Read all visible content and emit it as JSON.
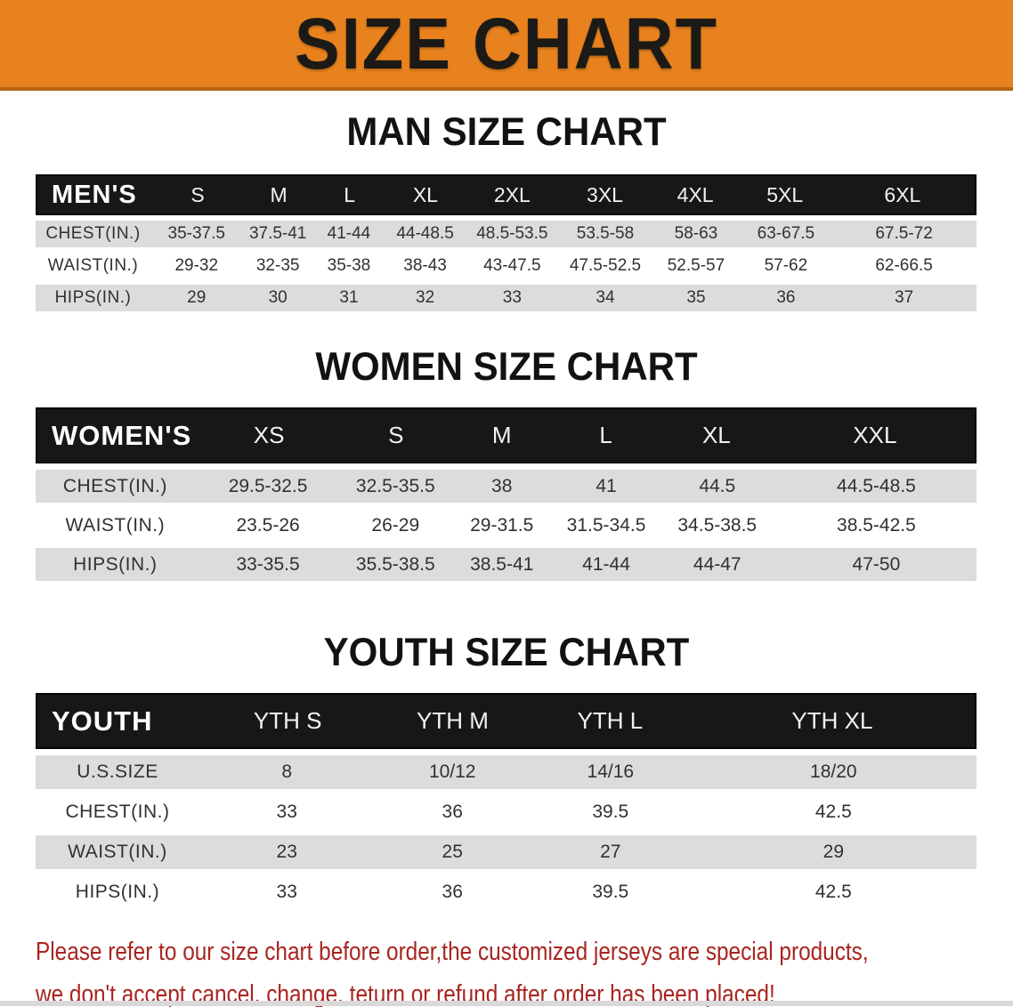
{
  "banner": {
    "title": "SIZE CHART",
    "bg_color": "#e8821e",
    "border_color": "#b76310",
    "text_color": "#1c1a16"
  },
  "colors": {
    "header_bar": "#171717",
    "row_gray": "#dcdcdc",
    "row_white": "#ffffff",
    "disclaimer_red": "#a82420"
  },
  "sections": [
    {
      "heading": "MAN SIZE CHART",
      "table": {
        "header": [
          "MEN'S",
          "S",
          "M",
          "L",
          "XL",
          "2XL",
          "3XL",
          "4XL",
          "5XL",
          "6XL"
        ],
        "rows": [
          {
            "label": "CHEST(IN.)",
            "values": [
              "35-37.5",
              "37.5-41",
              "41-44",
              "44-48.5",
              "48.5-53.5",
              "53.5-58",
              "58-63",
              "63-67.5",
              "67.5-72"
            ]
          },
          {
            "label": "WAIST(IN.)",
            "values": [
              "29-32",
              "32-35",
              "35-38",
              "38-43",
              "43-47.5",
              "47.5-52.5",
              "52.5-57",
              "57-62",
              "62-66.5"
            ]
          },
          {
            "label": "HIPS(IN.)",
            "values": [
              "29",
              "30",
              "31",
              "32",
              "33",
              "34",
              "35",
              "36",
              "37"
            ]
          }
        ]
      }
    },
    {
      "heading": "WOMEN SIZE CHART",
      "table": {
        "header": [
          "WOMEN'S",
          "XS",
          "S",
          "M",
          "L",
          "XL",
          "XXL"
        ],
        "rows": [
          {
            "label": "CHEST(IN.)",
            "values": [
              "29.5-32.5",
              "32.5-35.5",
              "38",
              "41",
              "44.5",
              "44.5-48.5"
            ]
          },
          {
            "label": "WAIST(IN.)",
            "values": [
              "23.5-26",
              "26-29",
              "29-31.5",
              "31.5-34.5",
              "34.5-38.5",
              "38.5-42.5"
            ]
          },
          {
            "label": "HIPS(IN.)",
            "values": [
              "33-35.5",
              "35.5-38.5",
              "38.5-41",
              "41-44",
              "44-47",
              "47-50"
            ]
          }
        ]
      }
    },
    {
      "heading": "YOUTH SIZE CHART",
      "table": {
        "header": [
          "YOUTH",
          "YTH S",
          "YTH M",
          "YTH L",
          "YTH XL"
        ],
        "rows": [
          {
            "label": "U.S.SIZE",
            "values": [
              "8",
              "10/12",
              "14/16",
              "18/20"
            ]
          },
          {
            "label": "CHEST(IN.)",
            "values": [
              "33",
              "36",
              "39.5",
              "42.5"
            ]
          },
          {
            "label": "WAIST(IN.)",
            "values": [
              "23",
              "25",
              "27",
              "29"
            ]
          },
          {
            "label": "HIPS(IN.)",
            "values": [
              "33",
              "36",
              "39.5",
              "42.5"
            ]
          }
        ]
      }
    }
  ],
  "disclaimer": {
    "line1": "Please refer to our size chart before order,the customized jerseys are special products,",
    "line2": "we don't accept cancel, change, teturn or refund after order has been placed!"
  }
}
